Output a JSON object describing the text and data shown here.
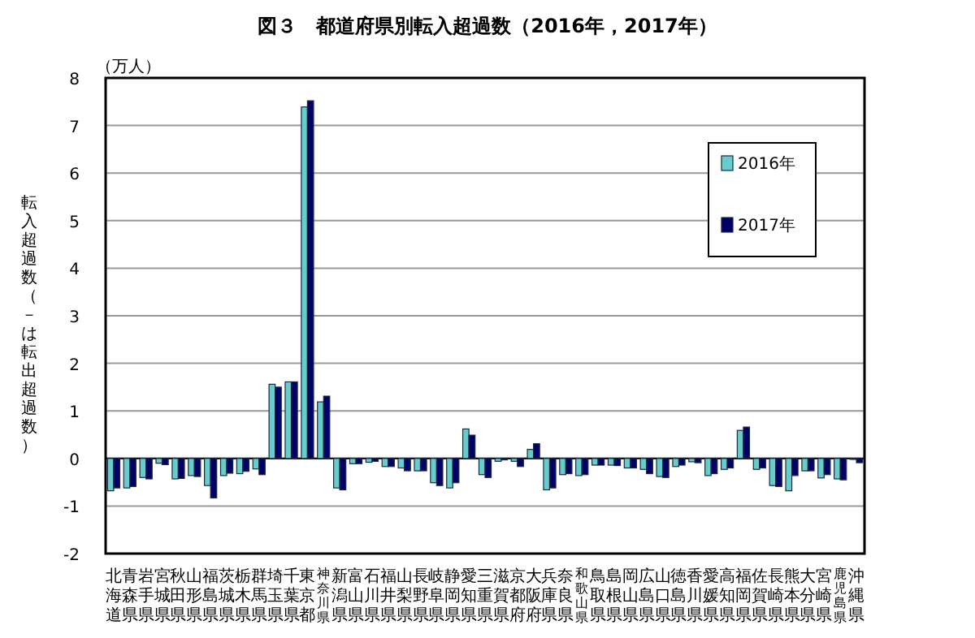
{
  "chart_data": {
    "type": "bar",
    "title": "図３　都道府県別転入超過数（2016年，2017年）",
    "ylabel": "転入超過数（－は転出超過数）",
    "annotations": [
      "（万人）"
    ],
    "categories": [
      "北海道",
      "青森県",
      "岩手県",
      "宮城県",
      "秋田県",
      "山形県",
      "福島県",
      "茨城県",
      "栃木県",
      "群馬県",
      "埼玉県",
      "千葉県",
      "東京都",
      "神奈川県",
      "新潟県",
      "富山県",
      "石川県",
      "福井県",
      "山梨県",
      "長野県",
      "岐阜県",
      "静岡県",
      "愛知県",
      "三重県",
      "滋賀県",
      "京都府",
      "大阪府",
      "兵庫県",
      "奈良県",
      "和歌山県",
      "鳥取県",
      "島根県",
      "岡山県",
      "広島県",
      "山口県",
      "徳島県",
      "香川県",
      "愛媛県",
      "高知県",
      "福岡県",
      "佐賀県",
      "長崎県",
      "熊本県",
      "大分県",
      "宮崎県",
      "鹿児島県",
      "沖縄県"
    ],
    "series": [
      {
        "name": "2016年",
        "color": "#66cccc",
        "values": [
          -0.68,
          -0.62,
          -0.4,
          -0.1,
          -0.43,
          -0.36,
          -0.57,
          -0.36,
          -0.32,
          -0.22,
          1.56,
          1.61,
          7.39,
          1.19,
          -0.62,
          -0.11,
          -0.08,
          -0.17,
          -0.2,
          -0.26,
          -0.51,
          -0.62,
          0.62,
          -0.34,
          -0.06,
          -0.06,
          0.19,
          -0.66,
          -0.34,
          -0.36,
          -0.14,
          -0.14,
          -0.2,
          -0.23,
          -0.38,
          -0.17,
          -0.07,
          -0.36,
          -0.23,
          0.59,
          -0.23,
          -0.57,
          -0.68,
          -0.26,
          -0.41,
          -0.43,
          -0.02
        ]
      },
      {
        "name": "2017年",
        "color": "#000066",
        "values": [
          -0.62,
          -0.59,
          -0.43,
          -0.13,
          -0.42,
          -0.38,
          -0.83,
          -0.31,
          -0.27,
          -0.34,
          1.5,
          1.61,
          7.52,
          1.31,
          -0.66,
          -0.11,
          -0.06,
          -0.17,
          -0.26,
          -0.26,
          -0.57,
          -0.51,
          0.49,
          -0.4,
          -0.03,
          -0.17,
          0.31,
          -0.62,
          -0.32,
          -0.34,
          -0.14,
          -0.15,
          -0.2,
          -0.32,
          -0.4,
          -0.14,
          -0.09,
          -0.32,
          -0.2,
          0.66,
          -0.2,
          -0.59,
          -0.36,
          -0.26,
          -0.34,
          -0.45,
          -0.09
        ]
      }
    ],
    "ylim": [
      -2,
      8
    ],
    "yticks": [
      -2,
      -1,
      0,
      1,
      2,
      3,
      4,
      5,
      6,
      7,
      8
    ],
    "grid": "y",
    "legend": "top right"
  }
}
